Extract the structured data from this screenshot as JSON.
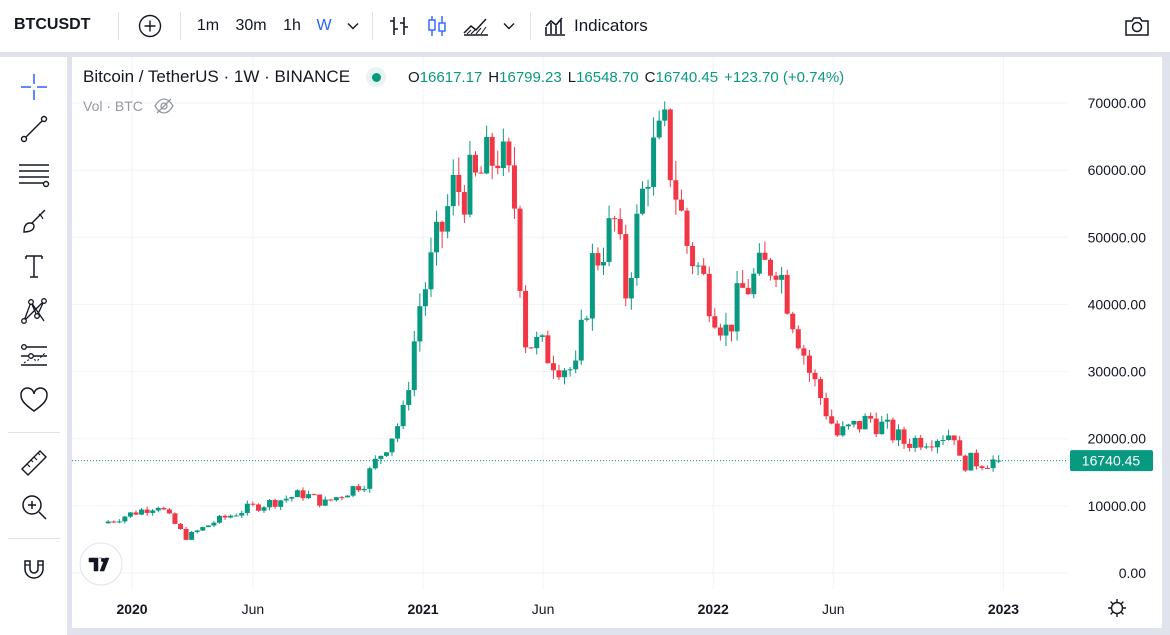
{
  "toolbar": {
    "symbol": "BTCUSDT",
    "intervals": [
      "1m",
      "30m",
      "1h",
      "W"
    ],
    "active_interval": "W",
    "indicators_label": "Indicators"
  },
  "legend": {
    "title": "Bitcoin / TetherUS · 1W · BINANCE",
    "o_label": "O",
    "o": "16617.17",
    "h_label": "H",
    "h": "16799.23",
    "l_label": "L",
    "l": "16548.70",
    "c_label": "C",
    "c": "16740.45",
    "change": "+123.70 (+0.74%)",
    "volume_label": "Vol · BTC"
  },
  "colors": {
    "up": "#089981",
    "down": "#f23645",
    "accent": "#2962ff"
  },
  "left_tools": [
    "crosshair-icon",
    "trend-line-icon",
    "fib-lines-icon",
    "brush-icon",
    "text-icon",
    "pattern-icon",
    "forecast-icon",
    "heart-icon",
    "ruler-icon",
    "zoom-in-icon",
    "magnet-icon"
  ],
  "chart_data": {
    "type": "candlestick",
    "title": "Bitcoin / TetherUS · 1W · BINANCE",
    "y_ticks": [
      "70000.00",
      "60000.00",
      "50000.00",
      "40000.00",
      "30000.00",
      "20000.00",
      "10000.00",
      "0.00"
    ],
    "ylim": [
      0,
      70000
    ],
    "x_ticks": [
      "2020",
      "Jun",
      "2021",
      "Jun",
      "2022",
      "Jun",
      "2023"
    ],
    "last_price_label": "16740.45",
    "grid": true,
    "anchors": [
      [
        "2019-12-02",
        7400
      ],
      [
        "2020-02-10",
        10200
      ],
      [
        "2020-03-16",
        5300
      ],
      [
        "2020-04-20",
        7600
      ],
      [
        "2020-06-01",
        9600
      ],
      [
        "2020-08-10",
        11800
      ],
      [
        "2020-09-07",
        10400
      ],
      [
        "2020-10-26",
        13600
      ],
      [
        "2020-12-14",
        23500
      ],
      [
        "2021-01-04",
        40000
      ],
      [
        "2021-02-15",
        57000
      ],
      [
        "2021-03-15",
        58000
      ],
      [
        "2021-04-12",
        63000
      ],
      [
        "2021-05-03",
        55000
      ],
      [
        "2021-05-17",
        35000
      ],
      [
        "2021-07-19",
        29800
      ],
      [
        "2021-08-09",
        46000
      ],
      [
        "2021-09-06",
        52000
      ],
      [
        "2021-09-20",
        42000
      ],
      [
        "2021-10-18",
        61000
      ],
      [
        "2021-11-08",
        65000
      ],
      [
        "2021-12-06",
        49000
      ],
      [
        "2022-01-24",
        36000
      ],
      [
        "2022-02-14",
        42000
      ],
      [
        "2022-03-28",
        47000
      ],
      [
        "2022-05-09",
        30000
      ],
      [
        "2022-06-13",
        20500
      ],
      [
        "2022-07-25",
        23000
      ],
      [
        "2022-09-05",
        19500
      ],
      [
        "2022-11-07",
        21000
      ],
      [
        "2022-11-14",
        16500
      ],
      [
        "2022-12-26",
        16740
      ]
    ],
    "close_points": [
      "2019-12-02",
      "2022-12-26"
    ]
  }
}
